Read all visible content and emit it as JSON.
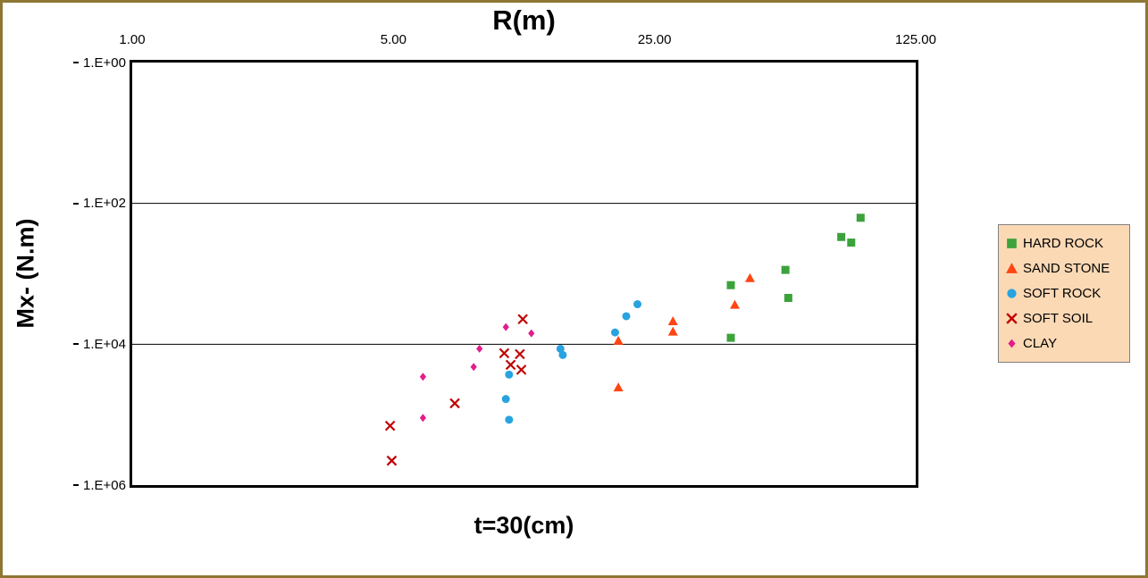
{
  "frame": {
    "border_color": "#8E7633",
    "background": "#FFFFFF"
  },
  "chart_data": {
    "type": "scatter",
    "title": "R(m)",
    "bottom_label": "t=30(cm)",
    "y_axis_title": "Mx- (N.m)",
    "x_axis": {
      "scale": "log",
      "position": "top",
      "min": 1,
      "max": 125,
      "ticks": [
        1,
        5,
        25,
        125
      ],
      "tick_labels": [
        "1.00",
        "5.00",
        "25.00",
        "125.00"
      ]
    },
    "y_axis": {
      "scale": "log",
      "inverted": true,
      "min_label": "1.E+00",
      "max_label": "1.E+06",
      "tick_exps": [
        0,
        2,
        4,
        6
      ],
      "tick_labels": [
        "1.E+00",
        "1.E+02",
        "1.E+04",
        "1.E+06"
      ],
      "gridline_exps": [
        2,
        4
      ]
    },
    "legend": {
      "position": "right",
      "background": "#FBD9B5",
      "border_color": "#7F7F7F"
    },
    "series": [
      {
        "name": "HARD ROCK",
        "marker": "square",
        "color": "#3CA23C",
        "points": [
          [
            79,
            300
          ],
          [
            89,
            160
          ],
          [
            84,
            360
          ],
          [
            56,
            880
          ],
          [
            57,
            2200
          ],
          [
            40,
            1450
          ],
          [
            40,
            8100
          ]
        ]
      },
      {
        "name": "SAND STONE",
        "marker": "triangle",
        "color": "#FF4513",
        "points": [
          [
            45,
            1150
          ],
          [
            41,
            2750
          ],
          [
            28,
            4700
          ],
          [
            28,
            6600
          ],
          [
            20,
            8900
          ],
          [
            20,
            41000
          ]
        ]
      },
      {
        "name": "SOFT ROCK",
        "marker": "circle",
        "color": "#29A3E0",
        "points": [
          [
            22.5,
            2700
          ],
          [
            21,
            4000
          ],
          [
            19.6,
            6800
          ],
          [
            14,
            11600
          ],
          [
            14.2,
            14200
          ],
          [
            10.2,
            27000
          ],
          [
            10,
            60000
          ],
          [
            10.2,
            118000
          ]
        ]
      },
      {
        "name": "SOFT SOIL",
        "marker": "x",
        "color": "#C00000",
        "points": [
          [
            11.1,
            4400
          ],
          [
            9.9,
            13400
          ],
          [
            10.9,
            13800
          ],
          [
            10.3,
            19600
          ],
          [
            11,
            23000
          ],
          [
            7.3,
            69000
          ],
          [
            4.9,
            144000
          ],
          [
            4.95,
            450000
          ]
        ]
      },
      {
        "name": "CLAY",
        "marker": "diamond",
        "color": "#E31C8B",
        "points": [
          [
            10,
            5700
          ],
          [
            11.7,
            7000
          ],
          [
            8.5,
            11600
          ],
          [
            8.2,
            21000
          ],
          [
            6,
            29000
          ],
          [
            6,
            111000
          ]
        ]
      }
    ]
  }
}
